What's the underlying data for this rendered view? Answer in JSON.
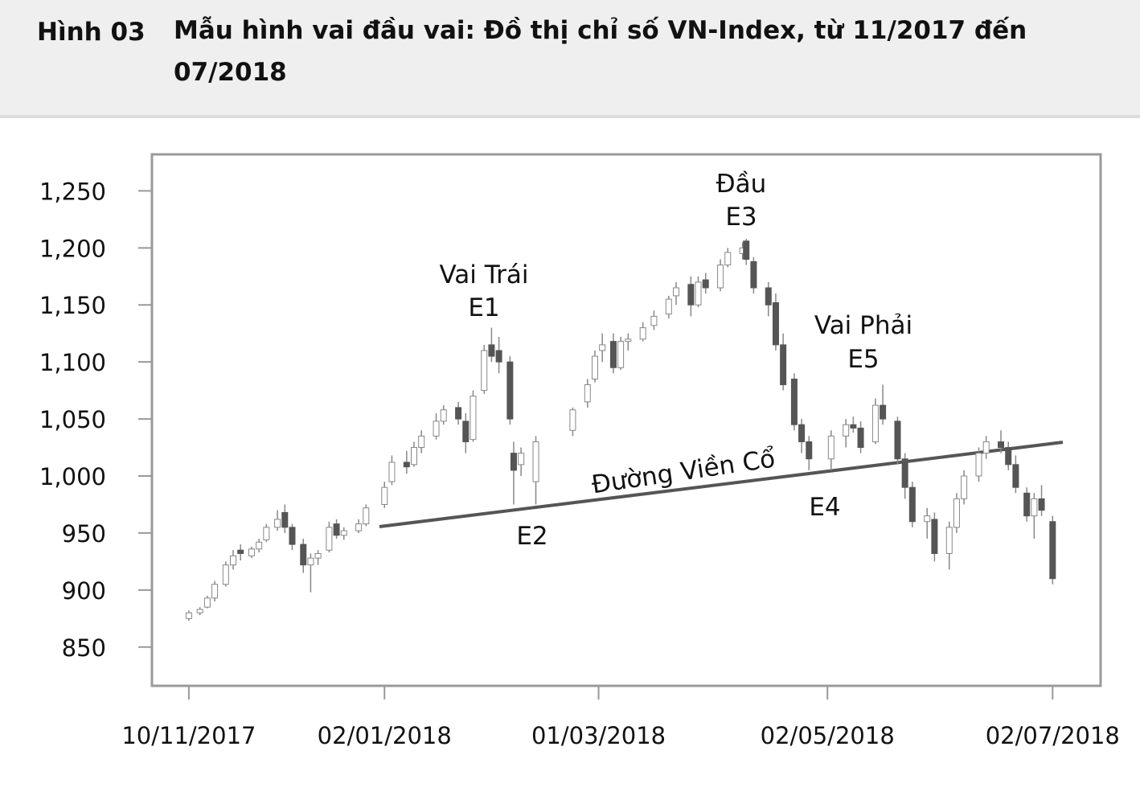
{
  "chart_data": {
    "type": "candlestick",
    "figure_label": "Hình 03",
    "title": "Mẫu hình vai đầu vai: Đồ thị chỉ số VN-Index, từ 11/2017 đến 07/2018",
    "annotations": [
      "Vai Trái",
      "E1",
      "E2",
      "Đầu",
      "E3",
      "E4",
      "Vai Phải",
      "E5",
      "Đường Viền Cổ"
    ],
    "x": [
      "2017-11-10",
      "2017-11-13",
      "2017-11-15",
      "2017-11-17",
      "2017-11-20",
      "2017-11-22",
      "2017-11-24",
      "2017-11-27",
      "2017-11-29",
      "2017-12-01",
      "2017-12-04",
      "2017-12-06",
      "2017-12-08",
      "2017-12-11",
      "2017-12-13",
      "2017-12-15",
      "2017-12-18",
      "2017-12-20",
      "2017-12-22",
      "2017-12-26",
      "2017-12-28",
      "2018-01-02",
      "2018-01-04",
      "2018-01-08",
      "2018-01-10",
      "2018-01-12",
      "2018-01-16",
      "2018-01-18",
      "2018-01-22",
      "2018-01-24",
      "2018-01-26",
      "2018-01-29",
      "2018-01-31",
      "2018-02-02",
      "2018-02-05",
      "2018-02-06",
      "2018-02-08",
      "2018-02-12",
      "2018-02-22",
      "2018-02-26",
      "2018-02-28",
      "2018-03-02",
      "2018-03-05",
      "2018-03-07",
      "2018-03-09",
      "2018-03-13",
      "2018-03-16",
      "2018-03-20",
      "2018-03-22",
      "2018-03-26",
      "2018-03-28",
      "2018-03-30",
      "2018-04-03",
      "2018-04-05",
      "2018-04-09",
      "2018-04-10",
      "2018-04-12",
      "2018-04-16",
      "2018-04-18",
      "2018-04-20",
      "2018-04-23",
      "2018-04-25",
      "2018-04-27",
      "2018-05-03",
      "2018-05-07",
      "2018-05-09",
      "2018-05-11",
      "2018-05-15",
      "2018-05-17",
      "2018-05-21",
      "2018-05-23",
      "2018-05-25",
      "2018-05-29",
      "2018-05-31",
      "2018-06-04",
      "2018-06-06",
      "2018-06-08",
      "2018-06-12",
      "2018-06-14",
      "2018-06-18",
      "2018-06-20",
      "2018-06-22",
      "2018-06-25",
      "2018-06-27",
      "2018-06-29",
      "2018-07-02"
    ],
    "open": [
      875,
      880,
      885,
      893,
      905,
      922,
      935,
      930,
      936,
      944,
      955,
      968,
      955,
      940,
      922,
      928,
      935,
      958,
      948,
      952,
      958,
      975,
      995,
      1012,
      1010,
      1025,
      1035,
      1048,
      1060,
      1048,
      1032,
      1075,
      1115,
      1110,
      1100,
      1020,
      1010,
      995,
      1040,
      1065,
      1085,
      1110,
      1118,
      1095,
      1118,
      1120,
      1132,
      1142,
      1158,
      1168,
      1150,
      1172,
      1165,
      1185,
      1195,
      1206,
      1188,
      1165,
      1152,
      1115,
      1085,
      1045,
      1030,
      1015,
      1035,
      1045,
      1042,
      1030,
      1062,
      1048,
      1015,
      990,
      960,
      962,
      932,
      955,
      980,
      1000,
      1020,
      1030,
      1025,
      1010,
      985,
      965,
      980,
      960
    ],
    "high": [
      882,
      885,
      895,
      908,
      925,
      935,
      940,
      938,
      945,
      958,
      970,
      975,
      958,
      945,
      932,
      935,
      960,
      962,
      955,
      962,
      975,
      995,
      1018,
      1022,
      1030,
      1040,
      1055,
      1062,
      1065,
      1055,
      1075,
      1115,
      1130,
      1122,
      1105,
      1030,
      1025,
      1035,
      1060,
      1085,
      1110,
      1125,
      1125,
      1122,
      1125,
      1135,
      1145,
      1158,
      1170,
      1175,
      1175,
      1178,
      1190,
      1200,
      1205,
      1208,
      1192,
      1170,
      1160,
      1125,
      1090,
      1050,
      1035,
      1040,
      1050,
      1052,
      1048,
      1068,
      1080,
      1052,
      1020,
      995,
      972,
      968,
      960,
      985,
      1005,
      1025,
      1035,
      1040,
      1030,
      1018,
      990,
      985,
      992,
      965
    ],
    "low": [
      873,
      878,
      884,
      890,
      903,
      918,
      926,
      928,
      933,
      942,
      952,
      950,
      935,
      915,
      898,
      922,
      933,
      945,
      944,
      950,
      956,
      972,
      992,
      1002,
      1008,
      1020,
      1032,
      1045,
      1045,
      1020,
      1030,
      1072,
      1100,
      1090,
      1045,
      975,
      1000,
      975,
      1035,
      1060,
      1082,
      1100,
      1090,
      1093,
      1110,
      1118,
      1128,
      1138,
      1150,
      1140,
      1148,
      1160,
      1162,
      1183,
      1190,
      1185,
      1160,
      1140,
      1110,
      1075,
      1040,
      1020,
      1005,
      1005,
      1025,
      1038,
      1020,
      1028,
      1045,
      1010,
      980,
      955,
      945,
      925,
      918,
      950,
      975,
      995,
      1015,
      1020,
      1005,
      985,
      960,
      945,
      965,
      905
    ],
    "close": [
      880,
      883,
      893,
      905,
      922,
      930,
      932,
      936,
      942,
      955,
      962,
      955,
      940,
      922,
      928,
      932,
      955,
      948,
      952,
      958,
      972,
      990,
      1012,
      1008,
      1025,
      1035,
      1048,
      1058,
      1050,
      1030,
      1070,
      1110,
      1105,
      1100,
      1050,
      1005,
      1020,
      1030,
      1058,
      1080,
      1105,
      1115,
      1095,
      1118,
      1120,
      1130,
      1140,
      1155,
      1165,
      1150,
      1170,
      1165,
      1185,
      1196,
      1200,
      1190,
      1165,
      1150,
      1115,
      1080,
      1045,
      1030,
      1015,
      1035,
      1045,
      1042,
      1025,
      1062,
      1050,
      1015,
      990,
      960,
      965,
      932,
      955,
      980,
      1000,
      1020,
      1030,
      1025,
      1010,
      990,
      965,
      980,
      970,
      910
    ],
    "xlim": [
      "2017-10-31",
      "2018-07-15"
    ],
    "xticks": [
      {
        "value": "2017-11-10",
        "label": "10/11/2017"
      },
      {
        "value": "2018-01-02",
        "label": "02/01/2018"
      },
      {
        "value": "2018-03-01",
        "label": "01/03/2018"
      },
      {
        "value": "2018-05-02",
        "label": "02/05/2018"
      },
      {
        "value": "2018-07-02",
        "label": "02/07/2018"
      }
    ],
    "ylim": [
      816,
      1282
    ],
    "yticks": [
      850,
      900,
      950,
      {
        "value": 1000,
        "label": "1,000"
      },
      {
        "value": 1050,
        "label": "1,050"
      },
      {
        "value": 1100,
        "label": "1,100"
      },
      {
        "value": 1150,
        "label": "1,150"
      },
      {
        "value": 1200,
        "label": "1,200"
      },
      {
        "value": 1250,
        "label": "1,250"
      }
    ],
    "up_color": "#ffffff",
    "down_color": "#555555"
  }
}
